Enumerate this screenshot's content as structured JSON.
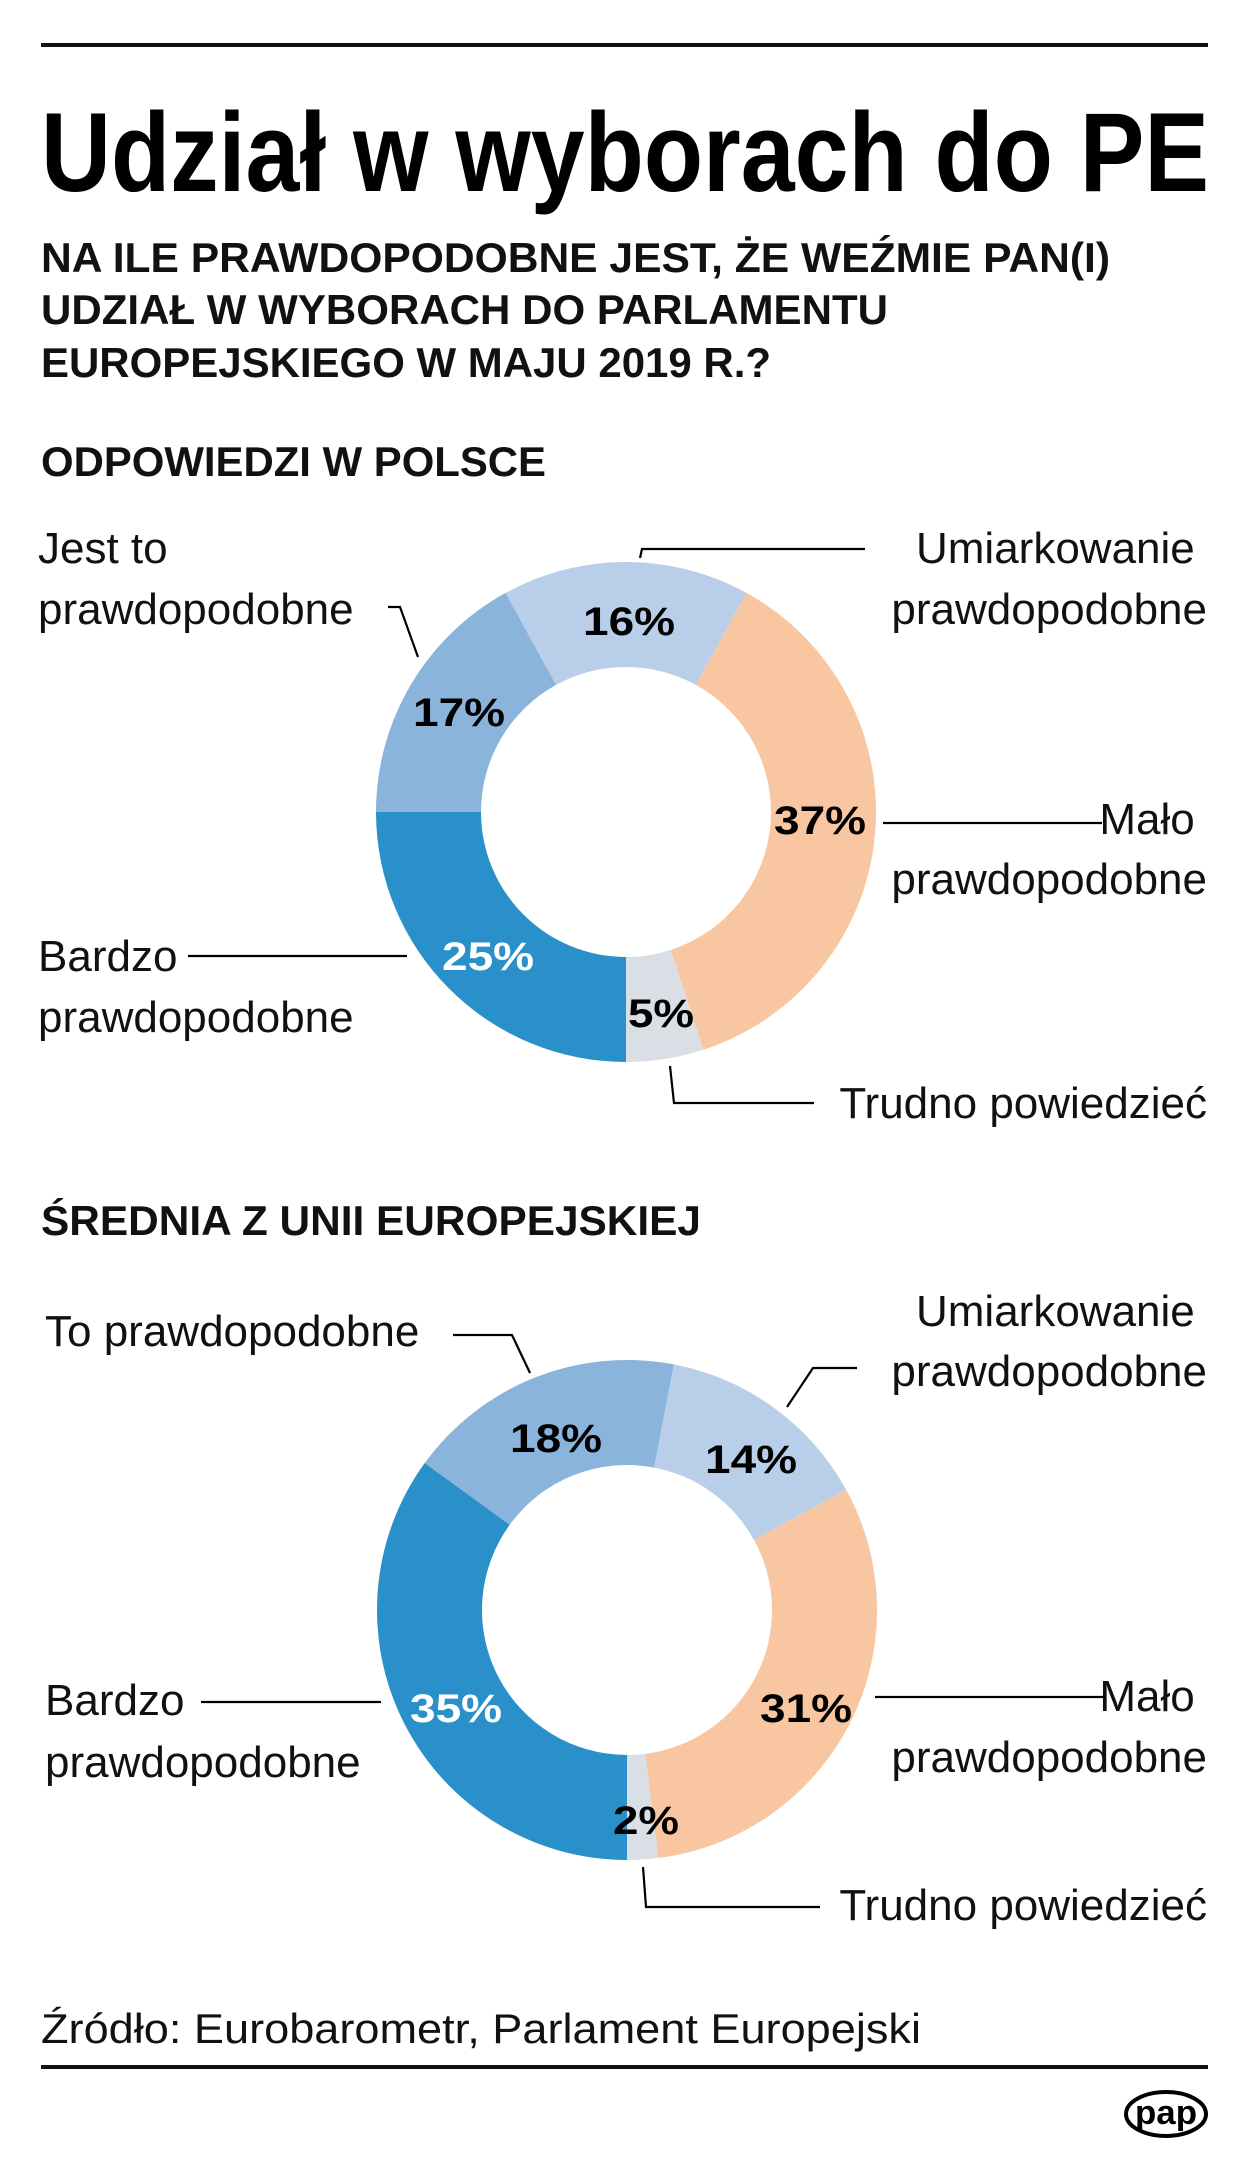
{
  "header": {
    "title": "Udział w wyborach do PE",
    "question_lines": [
      "NA ILE PRAWDOPODOBNE JEST, ŻE WEŹMIE PAN(I)",
      "UDZIAŁ W WYBORACH DO PARLAMENTU",
      "EUROPEJSKIEGO W MAJU 2019 R.?"
    ]
  },
  "colors": {
    "bardzo": "#2990c9",
    "jest_to": "#8ab4db",
    "umiarkowanie": "#b9cfe9",
    "malo": "#f8c6a0",
    "trudno": "#d9dfe4"
  },
  "chart_data": [
    {
      "type": "pie",
      "variant": "donut",
      "title": "ODPOWIEDZI W POLSCE",
      "start": "bottom",
      "direction": "clockwise",
      "unit": "%",
      "slices": [
        {
          "key": "bardzo",
          "label_lines": [
            "Bardzo",
            "prawdopodobne"
          ],
          "value": 25,
          "display": "25%"
        },
        {
          "key": "jest_to",
          "label_lines": [
            "Jest to",
            "prawdopodobne"
          ],
          "value": 17,
          "display": "17%"
        },
        {
          "key": "umiarkowanie",
          "label_lines": [
            "Umiarkowanie",
            "prawdopodobne"
          ],
          "value": 16,
          "display": "16%"
        },
        {
          "key": "malo",
          "label_lines": [
            "Mało",
            "prawdopodobne"
          ],
          "value": 37,
          "display": "37%"
        },
        {
          "key": "trudno",
          "label_lines": [
            "Trudno powiedzieć"
          ],
          "value": 5,
          "display": "5%"
        }
      ]
    },
    {
      "type": "pie",
      "variant": "donut",
      "title": "ŚREDNIA Z UNII EUROPEJSKIEJ",
      "start": "bottom",
      "direction": "clockwise",
      "unit": "%",
      "slices": [
        {
          "key": "bardzo",
          "label_lines": [
            "Bardzo",
            "prawdopodobne"
          ],
          "value": 35,
          "display": "35%"
        },
        {
          "key": "jest_to",
          "label_lines": [
            "To prawdopodobne"
          ],
          "value": 18,
          "display": "18%"
        },
        {
          "key": "umiarkowanie",
          "label_lines": [
            "Umiarkowanie",
            "prawdopodobne"
          ],
          "value": 14,
          "display": "14%"
        },
        {
          "key": "malo",
          "label_lines": [
            "Mało",
            "prawdopodobne"
          ],
          "value": 31,
          "display": "31%"
        },
        {
          "key": "trudno",
          "label_lines": [
            "Trudno powiedzieć"
          ],
          "value": 2,
          "display": "2%"
        }
      ]
    }
  ],
  "footer": {
    "source": "Źródło: Eurobarometr, Parlament Europejski",
    "logo": "pap"
  }
}
